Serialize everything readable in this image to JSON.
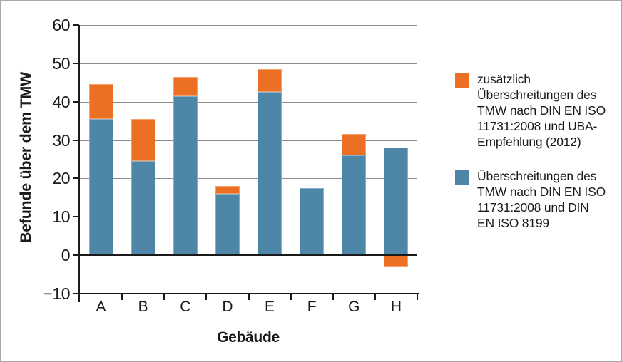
{
  "frame": {
    "background": "#ffffff",
    "border_color": "#a9aaa5"
  },
  "chart": {
    "y_axis": {
      "title": "Befunde über dem TMW",
      "tick_values": [
        60,
        50,
        40,
        30,
        20,
        10,
        0,
        -10
      ],
      "tick_labels": [
        "60",
        "50",
        "40",
        "30",
        "20",
        "10",
        "0",
        "−10"
      ]
    },
    "x_axis": {
      "title": "Gebäude",
      "tick_labels": [
        "A",
        "B",
        "C",
        "D",
        "E",
        "F",
        "G",
        "H"
      ]
    },
    "legend": {
      "items": [
        {
          "swatch_color": "#ec7023",
          "label": "zusätzlich\nÜberschreitungen des\nTMW nach DIN EN ISO\n11731:2008 und UBA-\nEmpfehlung (2012)"
        },
        {
          "swatch_color": "#4d86a6",
          "label": "Überschreitungen des\nTMW nach DIN EN ISO\n11731:2008 und DIN\nEN ISO 8199"
        }
      ]
    }
  },
  "chart_data": {
    "type": "bar",
    "stacked": true,
    "categories": [
      "A",
      "B",
      "C",
      "D",
      "E",
      "F",
      "G",
      "H"
    ],
    "series": [
      {
        "name": "Überschreitungen des TMW nach DIN EN ISO 11731:2008 und DIN EN ISO 8199",
        "color": "#4d86a6",
        "values": [
          35.5,
          24.5,
          41.5,
          16,
          42.5,
          17.5,
          26,
          28
        ]
      },
      {
        "name": "zusätzlich Überschreitungen des TMW nach DIN EN ISO 11731:2008 und UBA-Empfehlung (2012)",
        "color": "#ec7023",
        "values": [
          9,
          11,
          5,
          2,
          6,
          0,
          5.5,
          -3
        ]
      }
    ],
    "stacked_totals": [
      44.5,
      35.5,
      46.5,
      18,
      48.5,
      17.5,
      31.5,
      28
    ],
    "title": "",
    "xlabel": "Gebäude",
    "ylabel": "Befunde über dem TMW",
    "ylim": [
      -10,
      60
    ],
    "ytick_step": 10,
    "grid": true,
    "gridline_values": [
      60,
      50,
      40,
      30,
      20,
      10
    ],
    "zero_line": true,
    "legend_position": "right",
    "colors": {
      "grid": "#8c8c8c",
      "axis": "#1a1a1a",
      "text": "#1a1a1a"
    }
  }
}
